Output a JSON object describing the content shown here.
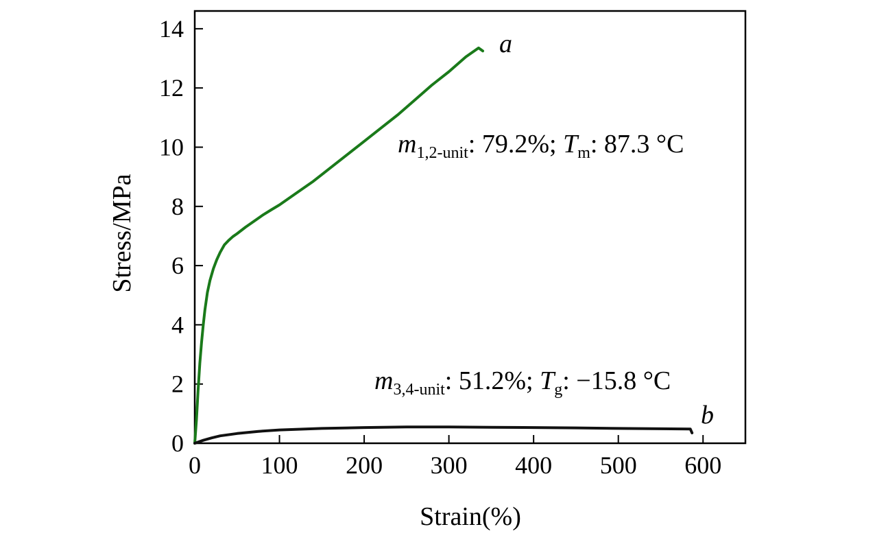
{
  "chart_data": {
    "type": "line",
    "xlabel": "Strain(%)",
    "ylabel": "Stress/MPa",
    "xlim": [
      0,
      650
    ],
    "ylim": [
      0,
      14.6
    ],
    "xticks": [
      0,
      100,
      200,
      300,
      400,
      500,
      600
    ],
    "yticks": [
      0,
      2,
      4,
      6,
      8,
      10,
      12,
      14
    ],
    "series": [
      {
        "name": "a",
        "color": "#1a7a1a",
        "x": [
          0,
          2,
          4,
          6,
          8,
          10,
          12,
          15,
          18,
          22,
          26,
          30,
          35,
          40,
          45,
          50,
          60,
          70,
          80,
          90,
          100,
          120,
          140,
          160,
          180,
          200,
          220,
          240,
          260,
          280,
          300,
          320,
          335,
          340
        ],
        "y": [
          0,
          0.8,
          1.8,
          2.7,
          3.4,
          4.0,
          4.5,
          5.1,
          5.5,
          5.9,
          6.2,
          6.45,
          6.7,
          6.85,
          6.98,
          7.08,
          7.3,
          7.5,
          7.7,
          7.88,
          8.05,
          8.45,
          8.85,
          9.3,
          9.75,
          10.2,
          10.65,
          11.1,
          11.6,
          12.1,
          12.55,
          13.05,
          13.35,
          13.25
        ]
      },
      {
        "name": "b",
        "color": "#111111",
        "x": [
          0,
          10,
          20,
          30,
          50,
          75,
          100,
          150,
          200,
          250,
          300,
          350,
          400,
          450,
          500,
          550,
          585,
          587
        ],
        "y": [
          0,
          0.1,
          0.18,
          0.25,
          0.33,
          0.4,
          0.45,
          0.5,
          0.53,
          0.55,
          0.55,
          0.54,
          0.53,
          0.52,
          0.5,
          0.49,
          0.48,
          0.35
        ]
      }
    ],
    "annotations": {
      "a": {
        "label": "a",
        "m_symbol": "m",
        "m_sub": "1,2-unit",
        "m_value": ": 79.2%; ",
        "t_symbol": "T",
        "t_sub": "m",
        "t_value": ": 87.3 °C"
      },
      "b": {
        "label": "b",
        "m_symbol": "m",
        "m_sub": "3,4-unit",
        "m_value": ": 51.2%; ",
        "t_symbol": "T",
        "t_sub": "g",
        "t_value": ": −15.8 °C"
      }
    }
  }
}
